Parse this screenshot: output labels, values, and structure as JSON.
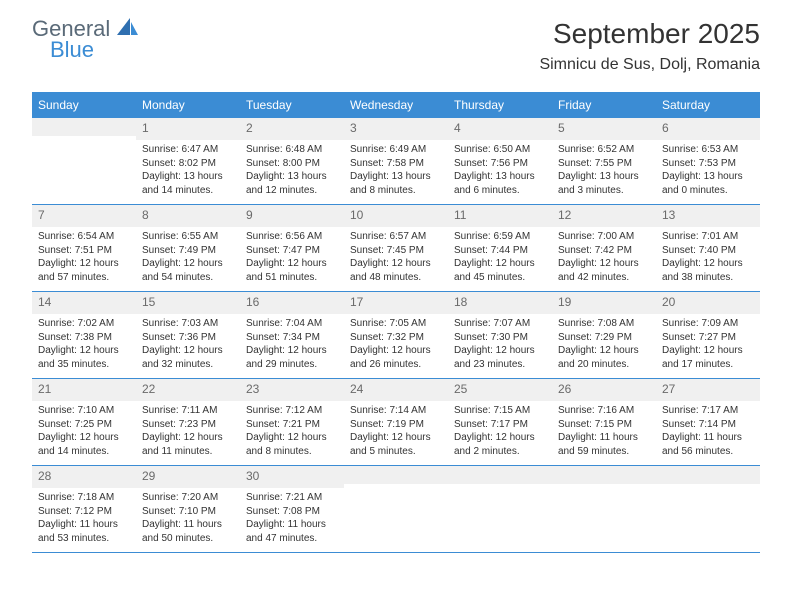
{
  "logo": {
    "general": "General",
    "blue": "Blue"
  },
  "title": "September 2025",
  "location": "Simnicu de Sus, Dolj, Romania",
  "colors": {
    "header_bg": "#3b8cd4",
    "shaded_bg": "#f0f0f0",
    "text": "#333333",
    "logo_gray": "#5a6a78",
    "logo_blue": "#3b8cd4"
  },
  "day_names": [
    "Sunday",
    "Monday",
    "Tuesday",
    "Wednesday",
    "Thursday",
    "Friday",
    "Saturday"
  ],
  "weeks": [
    [
      {
        "num": "",
        "sunrise": "",
        "sunset": "",
        "daylight1": "",
        "daylight2": ""
      },
      {
        "num": "1",
        "sunrise": "Sunrise: 6:47 AM",
        "sunset": "Sunset: 8:02 PM",
        "daylight1": "Daylight: 13 hours",
        "daylight2": "and 14 minutes."
      },
      {
        "num": "2",
        "sunrise": "Sunrise: 6:48 AM",
        "sunset": "Sunset: 8:00 PM",
        "daylight1": "Daylight: 13 hours",
        "daylight2": "and 12 minutes."
      },
      {
        "num": "3",
        "sunrise": "Sunrise: 6:49 AM",
        "sunset": "Sunset: 7:58 PM",
        "daylight1": "Daylight: 13 hours",
        "daylight2": "and 8 minutes."
      },
      {
        "num": "4",
        "sunrise": "Sunrise: 6:50 AM",
        "sunset": "Sunset: 7:56 PM",
        "daylight1": "Daylight: 13 hours",
        "daylight2": "and 6 minutes."
      },
      {
        "num": "5",
        "sunrise": "Sunrise: 6:52 AM",
        "sunset": "Sunset: 7:55 PM",
        "daylight1": "Daylight: 13 hours",
        "daylight2": "and 3 minutes."
      },
      {
        "num": "6",
        "sunrise": "Sunrise: 6:53 AM",
        "sunset": "Sunset: 7:53 PM",
        "daylight1": "Daylight: 13 hours",
        "daylight2": "and 0 minutes."
      }
    ],
    [
      {
        "num": "7",
        "sunrise": "Sunrise: 6:54 AM",
        "sunset": "Sunset: 7:51 PM",
        "daylight1": "Daylight: 12 hours",
        "daylight2": "and 57 minutes."
      },
      {
        "num": "8",
        "sunrise": "Sunrise: 6:55 AM",
        "sunset": "Sunset: 7:49 PM",
        "daylight1": "Daylight: 12 hours",
        "daylight2": "and 54 minutes."
      },
      {
        "num": "9",
        "sunrise": "Sunrise: 6:56 AM",
        "sunset": "Sunset: 7:47 PM",
        "daylight1": "Daylight: 12 hours",
        "daylight2": "and 51 minutes."
      },
      {
        "num": "10",
        "sunrise": "Sunrise: 6:57 AM",
        "sunset": "Sunset: 7:45 PM",
        "daylight1": "Daylight: 12 hours",
        "daylight2": "and 48 minutes."
      },
      {
        "num": "11",
        "sunrise": "Sunrise: 6:59 AM",
        "sunset": "Sunset: 7:44 PM",
        "daylight1": "Daylight: 12 hours",
        "daylight2": "and 45 minutes."
      },
      {
        "num": "12",
        "sunrise": "Sunrise: 7:00 AM",
        "sunset": "Sunset: 7:42 PM",
        "daylight1": "Daylight: 12 hours",
        "daylight2": "and 42 minutes."
      },
      {
        "num": "13",
        "sunrise": "Sunrise: 7:01 AM",
        "sunset": "Sunset: 7:40 PM",
        "daylight1": "Daylight: 12 hours",
        "daylight2": "and 38 minutes."
      }
    ],
    [
      {
        "num": "14",
        "sunrise": "Sunrise: 7:02 AM",
        "sunset": "Sunset: 7:38 PM",
        "daylight1": "Daylight: 12 hours",
        "daylight2": "and 35 minutes."
      },
      {
        "num": "15",
        "sunrise": "Sunrise: 7:03 AM",
        "sunset": "Sunset: 7:36 PM",
        "daylight1": "Daylight: 12 hours",
        "daylight2": "and 32 minutes."
      },
      {
        "num": "16",
        "sunrise": "Sunrise: 7:04 AM",
        "sunset": "Sunset: 7:34 PM",
        "daylight1": "Daylight: 12 hours",
        "daylight2": "and 29 minutes."
      },
      {
        "num": "17",
        "sunrise": "Sunrise: 7:05 AM",
        "sunset": "Sunset: 7:32 PM",
        "daylight1": "Daylight: 12 hours",
        "daylight2": "and 26 minutes."
      },
      {
        "num": "18",
        "sunrise": "Sunrise: 7:07 AM",
        "sunset": "Sunset: 7:30 PM",
        "daylight1": "Daylight: 12 hours",
        "daylight2": "and 23 minutes."
      },
      {
        "num": "19",
        "sunrise": "Sunrise: 7:08 AM",
        "sunset": "Sunset: 7:29 PM",
        "daylight1": "Daylight: 12 hours",
        "daylight2": "and 20 minutes."
      },
      {
        "num": "20",
        "sunrise": "Sunrise: 7:09 AM",
        "sunset": "Sunset: 7:27 PM",
        "daylight1": "Daylight: 12 hours",
        "daylight2": "and 17 minutes."
      }
    ],
    [
      {
        "num": "21",
        "sunrise": "Sunrise: 7:10 AM",
        "sunset": "Sunset: 7:25 PM",
        "daylight1": "Daylight: 12 hours",
        "daylight2": "and 14 minutes."
      },
      {
        "num": "22",
        "sunrise": "Sunrise: 7:11 AM",
        "sunset": "Sunset: 7:23 PM",
        "daylight1": "Daylight: 12 hours",
        "daylight2": "and 11 minutes."
      },
      {
        "num": "23",
        "sunrise": "Sunrise: 7:12 AM",
        "sunset": "Sunset: 7:21 PM",
        "daylight1": "Daylight: 12 hours",
        "daylight2": "and 8 minutes."
      },
      {
        "num": "24",
        "sunrise": "Sunrise: 7:14 AM",
        "sunset": "Sunset: 7:19 PM",
        "daylight1": "Daylight: 12 hours",
        "daylight2": "and 5 minutes."
      },
      {
        "num": "25",
        "sunrise": "Sunrise: 7:15 AM",
        "sunset": "Sunset: 7:17 PM",
        "daylight1": "Daylight: 12 hours",
        "daylight2": "and 2 minutes."
      },
      {
        "num": "26",
        "sunrise": "Sunrise: 7:16 AM",
        "sunset": "Sunset: 7:15 PM",
        "daylight1": "Daylight: 11 hours",
        "daylight2": "and 59 minutes."
      },
      {
        "num": "27",
        "sunrise": "Sunrise: 7:17 AM",
        "sunset": "Sunset: 7:14 PM",
        "daylight1": "Daylight: 11 hours",
        "daylight2": "and 56 minutes."
      }
    ],
    [
      {
        "num": "28",
        "sunrise": "Sunrise: 7:18 AM",
        "sunset": "Sunset: 7:12 PM",
        "daylight1": "Daylight: 11 hours",
        "daylight2": "and 53 minutes."
      },
      {
        "num": "29",
        "sunrise": "Sunrise: 7:20 AM",
        "sunset": "Sunset: 7:10 PM",
        "daylight1": "Daylight: 11 hours",
        "daylight2": "and 50 minutes."
      },
      {
        "num": "30",
        "sunrise": "Sunrise: 7:21 AM",
        "sunset": "Sunset: 7:08 PM",
        "daylight1": "Daylight: 11 hours",
        "daylight2": "and 47 minutes."
      },
      {
        "num": "",
        "sunrise": "",
        "sunset": "",
        "daylight1": "",
        "daylight2": ""
      },
      {
        "num": "",
        "sunrise": "",
        "sunset": "",
        "daylight1": "",
        "daylight2": ""
      },
      {
        "num": "",
        "sunrise": "",
        "sunset": "",
        "daylight1": "",
        "daylight2": ""
      },
      {
        "num": "",
        "sunrise": "",
        "sunset": "",
        "daylight1": "",
        "daylight2": ""
      }
    ]
  ]
}
